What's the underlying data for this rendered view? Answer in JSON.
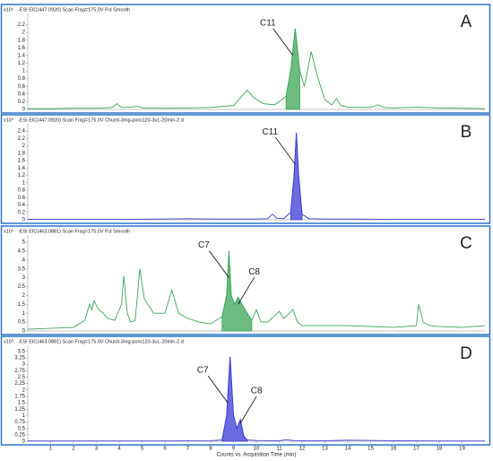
{
  "chart_data": [
    {
      "type": "line",
      "panel_label": "A",
      "header": "-ESI EIC(447.0920) Scan Frag=175.0V P.d  Smooth",
      "y_multiplier": "x10⁴",
      "xlim": [
        0,
        20
      ],
      "ylim": [
        0,
        2.4
      ],
      "yticks": [
        0,
        0.2,
        0.4,
        0.6,
        0.8,
        1,
        1.2,
        1.4,
        1.6,
        1.8,
        2,
        2.2
      ],
      "series": [
        {
          "color": "#3aa655",
          "x": [
            0,
            1,
            2,
            3,
            3.7,
            3.9,
            4.1,
            4.5,
            4.8,
            5,
            5.5,
            6,
            7,
            8,
            9,
            9.3,
            9.6,
            9.9,
            10.3,
            10.8,
            11,
            11.3,
            11.5,
            11.7,
            11.9,
            12.1,
            12.4,
            12.7,
            13,
            13.3,
            13.5,
            13.7,
            14,
            15,
            15.3,
            15.6,
            16,
            17,
            18,
            19,
            20
          ],
          "values": [
            0.02,
            0.02,
            0.03,
            0.03,
            0.05,
            0.15,
            0.05,
            0.06,
            0.08,
            0.04,
            0.04,
            0.03,
            0.04,
            0.05,
            0.1,
            0.3,
            0.5,
            0.3,
            0.15,
            0.12,
            0.2,
            0.35,
            1.0,
            2.1,
            1.0,
            0.6,
            1.5,
            0.8,
            0.25,
            0.12,
            0.28,
            0.1,
            0.06,
            0.05,
            0.12,
            0.05,
            0.04,
            0.06,
            0.04,
            0.03,
            0.02
          ]
        },
        {
          "color": "#3aa655",
          "filled": true,
          "x": [
            11.3,
            11.5,
            11.7,
            11.9
          ],
          "values": [
            0.35,
            1.0,
            2.1,
            1.0
          ]
        }
      ],
      "annotations": [
        {
          "text": "C11",
          "x": 11.6,
          "y": 1.4
        }
      ]
    },
    {
      "type": "line",
      "panel_label": "B",
      "header": "-ESI EIC(447.0920) Scan Frag=175.0V Chunti-3mg-poro120-3uL-20min-2.d",
      "y_multiplier": "x10³",
      "xlim": [
        0,
        20
      ],
      "ylim": [
        0,
        2.5
      ],
      "yticks": [
        0,
        0.2,
        0.4,
        0.6,
        0.8,
        1,
        1.2,
        1.4,
        1.6,
        1.8,
        2,
        2.2,
        2.4
      ],
      "series": [
        {
          "color": "#3b3bd6",
          "x": [
            0,
            2,
            4,
            6,
            7,
            8,
            9,
            10,
            10.5,
            10.7,
            10.9,
            11.2,
            11.5,
            11.65,
            11.75,
            11.85,
            12,
            12.3,
            13,
            14,
            16,
            18,
            20
          ],
          "values": [
            0.01,
            0.01,
            0.01,
            0.02,
            0.03,
            0.02,
            0.02,
            0.02,
            0.03,
            0.15,
            0.04,
            0.03,
            0.2,
            1.2,
            2.35,
            1.2,
            0.15,
            0.03,
            0.02,
            0.02,
            0.01,
            0.01,
            0.01
          ]
        },
        {
          "color": "#3b3bd6",
          "filled": true,
          "x": [
            11.5,
            11.65,
            11.75,
            11.85,
            12
          ],
          "values": [
            0.2,
            1.2,
            2.35,
            1.2,
            0.15
          ]
        }
      ],
      "annotations": [
        {
          "text": "C11",
          "x": 11.7,
          "y": 1.5
        }
      ]
    },
    {
      "type": "line",
      "panel_label": "C",
      "header": "-ESI EIC(463.0881) Scan Frag=175.0V P.d  Smooth",
      "y_multiplier": "x10⁴",
      "xlim": [
        0,
        20
      ],
      "ylim": [
        0,
        5.2
      ],
      "yticks": [
        0,
        0.5,
        1,
        1.5,
        2,
        2.5,
        3,
        3.5,
        4,
        4.5,
        5
      ],
      "series": [
        {
          "color": "#3aa655",
          "x": [
            0,
            1,
            2,
            2.5,
            2.7,
            2.8,
            2.9,
            3.1,
            3.3,
            3.5,
            3.8,
            4.1,
            4.2,
            4.35,
            4.5,
            4.7,
            4.9,
            5.1,
            5.5,
            6,
            6.3,
            6.6,
            7,
            7.5,
            8,
            8.5,
            8.7,
            8.8,
            8.9,
            9.05,
            9.2,
            9.5,
            9.8,
            10,
            10.2,
            10.5,
            11,
            11.2,
            11.6,
            11.8,
            12,
            13,
            14,
            15,
            16,
            17,
            17.1,
            17.3,
            17.6,
            18,
            19,
            20
          ],
          "values": [
            0.1,
            0.15,
            0.2,
            0.6,
            1.5,
            1.2,
            1.7,
            1.2,
            1.0,
            0.7,
            0.6,
            1.5,
            3.1,
            1.0,
            0.5,
            0.6,
            3.5,
            1.8,
            1.0,
            1.0,
            2.3,
            1.0,
            0.7,
            0.5,
            0.4,
            0.8,
            2.0,
            4.5,
            2.0,
            1.5,
            1.9,
            1.2,
            0.6,
            1.2,
            0.5,
            0.5,
            1.1,
            0.7,
            1.2,
            0.5,
            0.3,
            0.3,
            0.3,
            0.25,
            0.2,
            0.3,
            1.5,
            0.5,
            0.3,
            0.25,
            0.2,
            0.3
          ]
        },
        {
          "color": "#3aa655",
          "filled": true,
          "x": [
            8.5,
            8.7,
            8.8,
            8.9,
            9.05,
            9.2,
            9.5,
            9.8
          ],
          "values": [
            0.8,
            2.0,
            4.5,
            2.0,
            1.5,
            1.9,
            1.2,
            0.6
          ]
        }
      ],
      "annotations": [
        {
          "text": "C7",
          "x": 8.8,
          "y": 3.0
        },
        {
          "text": "C8",
          "x": 9.2,
          "y": 1.5
        }
      ]
    },
    {
      "type": "line",
      "panel_label": "D",
      "header": "-ESI EIC(463.0881) Scan Frag=175.0V Chunti-3mg-poro120-3uL-20min-2.d",
      "y_multiplier": "x10³",
      "xlim": [
        0,
        20
      ],
      "ylim": [
        0,
        3.6
      ],
      "yticks": [
        0,
        0.25,
        0.5,
        0.75,
        1,
        1.25,
        1.5,
        1.75,
        2,
        2.25,
        2.5,
        2.75,
        3,
        3.25,
        3.5
      ],
      "xticks": [
        1,
        2,
        3,
        4,
        5,
        6,
        7,
        8,
        9,
        10,
        11,
        12,
        13,
        14,
        15,
        16,
        17,
        18,
        19
      ],
      "x_label": "Counts vs. Acquisition Time (min)",
      "series": [
        {
          "color": "#3b3bd6",
          "x": [
            0,
            2,
            4,
            6,
            8,
            8.5,
            8.7,
            8.85,
            9.0,
            9.15,
            9.3,
            9.45,
            9.6,
            10,
            11,
            11.3,
            11.6,
            12,
            13,
            14,
            16,
            18,
            20
          ],
          "values": [
            0.01,
            0.01,
            0.01,
            0.01,
            0.02,
            0.05,
            1.0,
            3.3,
            1.0,
            0.5,
            0.85,
            0.2,
            0.05,
            0.03,
            0.02,
            0.06,
            0.03,
            0.02,
            0.02,
            0.04,
            0.02,
            0.01,
            0.01
          ]
        },
        {
          "color": "#3b3bd6",
          "filled": true,
          "x": [
            8.5,
            8.7,
            8.85,
            9.0,
            9.15,
            9.3,
            9.45,
            9.6
          ],
          "values": [
            0.05,
            1.0,
            3.3,
            1.0,
            0.5,
            0.85,
            0.2,
            0.05
          ]
        }
      ],
      "annotations": [
        {
          "text": "C7",
          "x": 8.75,
          "y": 1.5
        },
        {
          "text": "C8",
          "x": 9.3,
          "y": 0.7
        }
      ]
    }
  ]
}
